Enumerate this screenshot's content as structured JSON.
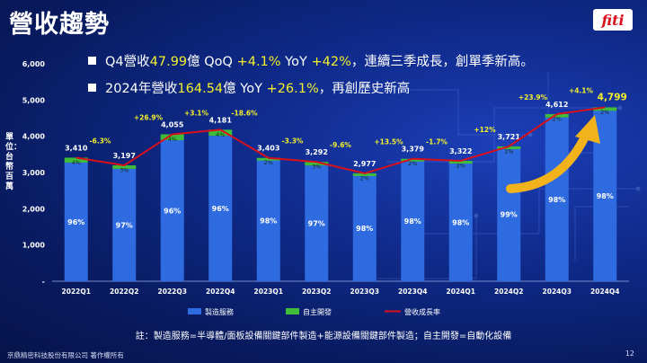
{
  "page": {
    "title": "營收趨勢",
    "bullets": [
      {
        "p1": "Q4營收",
        "h1": "47.99",
        "p2": "億 QoQ ",
        "h2": "+4.1%",
        "p3": " YoY ",
        "h3": "+42%",
        "p4": "，連續三季成長，創單季新高。"
      },
      {
        "p1": "2024年營收",
        "h1": "164.54",
        "p2": "億 YoY ",
        "h2": "+26.1%",
        "p3": "，再創歷史新高",
        "h3": "",
        "p4": ""
      }
    ],
    "footnote": "註：製造服務=半導體/面板設備關鍵部件製造+能源設備關鍵部件製造；自主開發=自動化設備",
    "copyright": "京鼎精密科技股份有限公司 著作權所有",
    "page_number": "12",
    "logo_text": "fiti"
  },
  "colors": {
    "manufacturing": "#2f6be0",
    "self_dev": "#3fbd3a",
    "growth_line": "#d8101c",
    "highlight": "#f3ef2c",
    "arrow": "#f2b21c"
  },
  "chart_data": {
    "type": "bar",
    "ylabel": "單位：台幣百萬",
    "ylim": [
      0,
      6000
    ],
    "yticks": [
      0,
      1000,
      2000,
      3000,
      4000,
      5000,
      6000
    ],
    "ytick_labels": [
      "-",
      "1,000",
      "2,000",
      "3,000",
      "4,000",
      "5,000",
      "6,000"
    ],
    "categories": [
      "2022Q1",
      "2022Q2",
      "2022Q3",
      "2022Q4",
      "2023Q1",
      "2023Q2",
      "2023Q3",
      "2023Q4",
      "2024Q1",
      "2024Q2",
      "2024Q3",
      "2024Q4"
    ],
    "totals": [
      3410,
      3197,
      4055,
      4181,
      3403,
      3292,
      2977,
      3379,
      3322,
      3721,
      4612,
      4799
    ],
    "total_labels": [
      "3,410",
      "3,197",
      "4,055",
      "4,181",
      "3,403",
      "3,292",
      "2,977",
      "3,379",
      "3,322",
      "3,721",
      "4,612",
      "4,799"
    ],
    "series": [
      {
        "name": "製造服務",
        "share_labels": [
          "96%",
          "97%",
          "96%",
          "96%",
          "98%",
          "97%",
          "98%",
          "98%",
          "98%",
          "99%",
          "98%",
          "98%"
        ],
        "shares": [
          0.96,
          0.97,
          0.96,
          0.96,
          0.98,
          0.97,
          0.98,
          0.98,
          0.98,
          0.99,
          0.98,
          0.98
        ]
      },
      {
        "name": "自主開發",
        "share_labels": [
          "4%",
          "3%",
          "4%",
          "4%",
          "2%",
          "3%",
          "2%",
          "2%",
          "2%",
          "1%",
          "2%",
          "2%"
        ],
        "shares": [
          0.04,
          0.03,
          0.04,
          0.04,
          0.02,
          0.03,
          0.02,
          0.02,
          0.02,
          0.01,
          0.02,
          0.02
        ]
      },
      {
        "name": "營收成長率",
        "growth_labels": [
          "-6.3%",
          "+26.9%",
          "+3.1%",
          "-18.6%",
          "-3.3%",
          "-9.6%",
          "+13.5%",
          "-1.7%",
          "+12%",
          "+23.9%",
          "+4.1%"
        ]
      }
    ],
    "legend_position": "bottom"
  }
}
